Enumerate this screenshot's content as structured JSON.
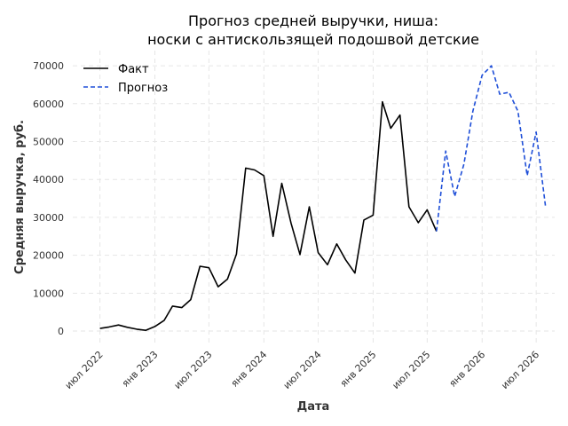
{
  "chart_data": {
    "type": "line",
    "title_line1": "Прогноз средней выручки, ниша:",
    "title_line2": "носки с антискользящей подошвой детские",
    "xlabel": "Дата",
    "ylabel": "Средняя выручка, руб.",
    "ylim": [
      -3500,
      74000
    ],
    "xlim": [
      "2022-04-01",
      "2026-09-01"
    ],
    "grid": true,
    "legend_position": "top-left",
    "x_ticks": [
      {
        "date": "2022-07-01",
        "label": "июл 2022"
      },
      {
        "date": "2023-01-01",
        "label": "янв 2023"
      },
      {
        "date": "2023-07-01",
        "label": "июл 2023"
      },
      {
        "date": "2024-01-01",
        "label": "янв 2024"
      },
      {
        "date": "2024-07-01",
        "label": "июл 2024"
      },
      {
        "date": "2025-01-01",
        "label": "янв 2025"
      },
      {
        "date": "2025-07-01",
        "label": "июл 2025"
      },
      {
        "date": "2026-01-01",
        "label": "янв 2026"
      },
      {
        "date": "2026-07-01",
        "label": "июл 2026"
      }
    ],
    "y_ticks": [
      0,
      10000,
      20000,
      30000,
      40000,
      50000,
      60000,
      70000
    ],
    "series": [
      {
        "name": "Факт",
        "color": "#000000",
        "style": "solid",
        "points": [
          [
            "2022-07-01",
            700
          ],
          [
            "2022-08-01",
            1100
          ],
          [
            "2022-09-01",
            1600
          ],
          [
            "2022-10-01",
            1000
          ],
          [
            "2022-11-01",
            500
          ],
          [
            "2022-12-01",
            200
          ],
          [
            "2023-01-01",
            1200
          ],
          [
            "2023-02-01",
            2800
          ],
          [
            "2023-03-01",
            6600
          ],
          [
            "2023-04-01",
            6200
          ],
          [
            "2023-05-01",
            8300
          ],
          [
            "2023-06-01",
            17100
          ],
          [
            "2023-07-01",
            16700
          ],
          [
            "2023-08-01",
            11700
          ],
          [
            "2023-09-01",
            13700
          ],
          [
            "2023-10-01",
            20300
          ],
          [
            "2023-11-01",
            43000
          ],
          [
            "2023-12-01",
            42500
          ],
          [
            "2024-01-01",
            41000
          ],
          [
            "2024-02-01",
            25000
          ],
          [
            "2024-03-01",
            39000
          ],
          [
            "2024-04-01",
            28500
          ],
          [
            "2024-05-01",
            20200
          ],
          [
            "2024-06-01",
            32800
          ],
          [
            "2024-07-01",
            20700
          ],
          [
            "2024-08-01",
            17500
          ],
          [
            "2024-09-01",
            23000
          ],
          [
            "2024-10-01",
            18800
          ],
          [
            "2024-11-01",
            15300
          ],
          [
            "2024-12-01",
            29300
          ],
          [
            "2025-01-01",
            30600
          ],
          [
            "2025-02-01",
            60500
          ],
          [
            "2025-03-01",
            53500
          ],
          [
            "2025-04-01",
            57000
          ],
          [
            "2025-05-01",
            32800
          ],
          [
            "2025-06-01",
            28600
          ],
          [
            "2025-07-01",
            32000
          ],
          [
            "2025-08-01",
            26300
          ]
        ]
      },
      {
        "name": "Прогноз",
        "color": "#1f4fd8",
        "style": "dashed",
        "points": [
          [
            "2025-08-01",
            26300
          ],
          [
            "2025-09-01",
            47500
          ],
          [
            "2025-10-01",
            35500
          ],
          [
            "2025-11-01",
            44000
          ],
          [
            "2025-12-01",
            58000
          ],
          [
            "2026-01-01",
            67500
          ],
          [
            "2026-02-01",
            70000
          ],
          [
            "2026-03-01",
            62500
          ],
          [
            "2026-04-01",
            63000
          ],
          [
            "2026-05-01",
            58000
          ],
          [
            "2026-06-01",
            41000
          ],
          [
            "2026-07-01",
            52500
          ],
          [
            "2026-08-01",
            33000
          ]
        ]
      }
    ]
  }
}
